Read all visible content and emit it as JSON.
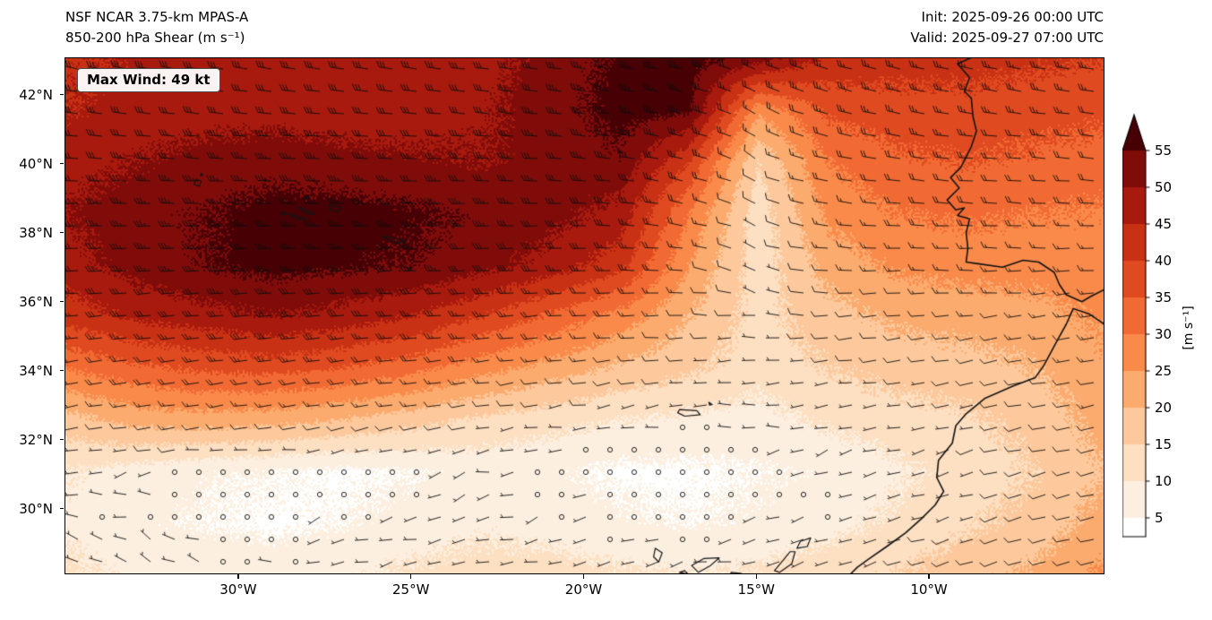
{
  "chart_data": {
    "type": "heatmap",
    "title": "NSF NCAR 3.75-km MPAS-A",
    "subtitle": "850-200 hPa Shear (m s⁻¹)",
    "init_label": "Init: 2025-09-26 00:00 UTC",
    "valid_label": "Valid: 2025-09-27 07:00 UTC",
    "max_wind_label": "Max Wind: 49 kt",
    "axes": {
      "lon_min": -35.03,
      "lon_max": -4.97,
      "lat_min": 28.12,
      "lat_max": 43.06,
      "xticks": [
        {
          "lon": -30,
          "label": "30°W"
        },
        {
          "lon": -25,
          "label": "25°W"
        },
        {
          "lon": -20,
          "label": "20°W"
        },
        {
          "lon": -15,
          "label": "15°W"
        },
        {
          "lon": -10,
          "label": "10°W"
        }
      ],
      "yticks": [
        {
          "lat": 42,
          "label": "42°N"
        },
        {
          "lat": 40,
          "label": "40°N"
        },
        {
          "lat": 38,
          "label": "38°N"
        },
        {
          "lat": 36,
          "label": "36°N"
        },
        {
          "lat": 34,
          "label": "34°N"
        },
        {
          "lat": 32,
          "label": "32°N"
        },
        {
          "lat": 30,
          "label": "30°N"
        }
      ]
    },
    "colorbar": {
      "label": "[m s⁻¹]",
      "ticks": [
        5,
        10,
        15,
        20,
        25,
        30,
        35,
        40,
        45,
        50,
        55
      ],
      "level_step": 5,
      "extend": "max",
      "colors": [
        "#ffffff",
        "#fcefe0",
        "#fddfc2",
        "#fdc99c",
        "#fcab6e",
        "#fa8a4a",
        "#f16a33",
        "#e04a20",
        "#c93114",
        "#a81a0e",
        "#800c0a",
        "#470105"
      ]
    },
    "shear_grid": {
      "units": "m s-1",
      "nx": 16,
      "ny": 11,
      "lons": [
        -35,
        -33,
        -31,
        -29,
        -27,
        -25,
        -23,
        -21,
        -19,
        -17,
        -15,
        -13,
        -11,
        -9,
        -7,
        -5
      ],
      "lats": [
        43.1,
        41.6,
        40.1,
        38.6,
        37.1,
        35.6,
        34.1,
        32.6,
        31.1,
        29.6,
        28.1
      ],
      "values": [
        [
          44,
          46,
          47,
          47,
          46,
          46,
          48,
          52,
          56,
          57,
          52,
          44,
          42,
          42,
          41,
          40
        ],
        [
          45,
          47,
          48,
          48,
          47,
          47,
          49,
          53,
          57,
          56,
          26,
          36,
          38,
          38,
          37,
          36
        ],
        [
          48,
          50,
          52,
          53,
          52,
          51,
          50,
          52,
          54,
          40,
          15,
          30,
          34,
          35,
          34,
          33
        ],
        [
          50,
          53,
          55,
          57,
          57,
          56,
          54,
          52,
          48,
          30,
          12,
          26,
          30,
          31,
          30,
          29
        ],
        [
          48,
          52,
          55,
          57,
          56,
          55,
          52,
          48,
          42,
          25,
          12,
          22,
          26,
          27,
          27,
          29
        ],
        [
          42,
          46,
          48,
          50,
          48,
          45,
          40,
          34,
          28,
          20,
          13,
          18,
          21,
          22,
          23,
          26
        ],
        [
          30,
          34,
          36,
          37,
          35,
          32,
          27,
          23,
          19,
          16,
          12,
          15,
          17,
          18,
          20,
          24
        ],
        [
          18,
          22,
          23,
          22,
          20,
          17,
          14,
          12,
          10,
          9,
          8,
          11,
          13,
          14,
          17,
          22
        ],
        [
          10,
          8,
          6,
          5,
          4,
          5,
          7,
          6,
          4,
          4,
          5,
          6,
          9,
          12,
          15,
          20
        ],
        [
          9,
          6,
          5,
          4,
          5,
          7,
          9,
          8,
          6,
          5,
          6,
          8,
          11,
          14,
          17,
          22
        ],
        [
          11,
          9,
          8,
          8,
          9,
          11,
          12,
          12,
          11,
          10,
          11,
          13,
          15,
          18,
          21,
          26
        ]
      ]
    },
    "wind_grid": {
      "units": "kt",
      "nx": 16,
      "ny": 11,
      "u": [
        [
          28,
          29,
          30,
          30,
          29,
          29,
          30,
          32,
          35,
          35,
          30,
          26,
          25,
          25,
          24,
          24
        ],
        [
          29,
          30,
          31,
          31,
          30,
          30,
          31,
          33,
          35,
          34,
          15,
          22,
          24,
          24,
          23,
          22
        ],
        [
          30,
          32,
          33,
          34,
          33,
          32,
          31,
          32,
          34,
          25,
          8,
          18,
          21,
          22,
          21,
          20
        ],
        [
          32,
          34,
          35,
          36,
          36,
          35,
          34,
          32,
          30,
          18,
          6,
          15,
          18,
          19,
          18,
          17
        ],
        [
          30,
          33,
          35,
          36,
          35,
          34,
          32,
          30,
          26,
          14,
          5,
          12,
          15,
          16,
          16,
          16
        ],
        [
          26,
          29,
          30,
          31,
          30,
          28,
          25,
          21,
          17,
          11,
          6,
          9,
          11,
          12,
          13,
          14
        ],
        [
          18,
          21,
          22,
          23,
          22,
          20,
          16,
          13,
          10,
          8,
          5,
          7,
          8,
          9,
          11,
          13
        ],
        [
          10,
          13,
          14,
          13,
          12,
          10,
          8,
          6,
          4,
          3,
          3,
          5,
          6,
          7,
          9,
          12
        ],
        [
          5,
          3,
          2,
          1,
          1,
          2,
          3,
          2,
          1,
          1,
          2,
          2,
          4,
          6,
          8,
          10
        ],
        [
          4,
          2,
          1,
          1,
          2,
          3,
          4,
          3,
          2,
          1,
          2,
          3,
          5,
          7,
          8,
          10
        ],
        [
          5,
          3,
          3,
          3,
          4,
          5,
          5,
          5,
          4,
          4,
          5,
          6,
          7,
          9,
          10,
          12
        ]
      ],
      "v": [
        [
          -6,
          -6,
          -5,
          -5,
          -4,
          -4,
          -4,
          -5,
          -6,
          -8,
          -10,
          -8,
          -6,
          -5,
          -4,
          -4
        ],
        [
          -4,
          -4,
          -4,
          -3,
          -3,
          -3,
          -3,
          -4,
          -6,
          -8,
          -8,
          -6,
          -5,
          -4,
          -3,
          -3
        ],
        [
          -2,
          -2,
          -2,
          -1,
          -1,
          -1,
          -1,
          -2,
          -4,
          -6,
          -5,
          -4,
          -3,
          -2,
          -2,
          -2
        ],
        [
          0,
          0,
          0,
          1,
          1,
          1,
          0,
          0,
          -2,
          -4,
          -3,
          -2,
          -1,
          -1,
          -1,
          0
        ],
        [
          2,
          2,
          2,
          2,
          2,
          2,
          1,
          1,
          0,
          -2,
          -2,
          -1,
          0,
          0,
          0,
          1
        ],
        [
          3,
          3,
          3,
          3,
          3,
          2,
          2,
          2,
          1,
          0,
          -1,
          0,
          1,
          1,
          2,
          2
        ],
        [
          3,
          3,
          3,
          3,
          3,
          2,
          2,
          2,
          1,
          1,
          0,
          1,
          1,
          2,
          2,
          3
        ],
        [
          2,
          2,
          2,
          2,
          2,
          2,
          1,
          1,
          1,
          0,
          0,
          1,
          1,
          2,
          2,
          3
        ],
        [
          1,
          1,
          0,
          0,
          0,
          1,
          1,
          0,
          0,
          0,
          0,
          1,
          1,
          2,
          2,
          2
        ],
        [
          -1,
          -1,
          0,
          0,
          1,
          1,
          1,
          1,
          0,
          0,
          1,
          1,
          2,
          2,
          2,
          2
        ],
        [
          -2,
          -1,
          -1,
          0,
          1,
          1,
          1,
          1,
          1,
          1,
          1,
          2,
          2,
          3,
          3,
          3
        ]
      ]
    },
    "coastlines": [
      [
        [
          -8.75,
          43.1
        ],
        [
          -9.2,
          42.9
        ],
        [
          -8.85,
          42.5
        ],
        [
          -9.0,
          42.1
        ],
        [
          -8.8,
          41.9
        ],
        [
          -8.75,
          41.35
        ],
        [
          -8.65,
          40.95
        ],
        [
          -8.8,
          40.5
        ],
        [
          -9.1,
          39.9
        ],
        [
          -9.4,
          39.6
        ],
        [
          -9.15,
          39.3
        ],
        [
          -9.5,
          38.95
        ],
        [
          -9.25,
          38.66
        ],
        [
          -9.0,
          38.72
        ],
        [
          -9.2,
          38.5
        ],
        [
          -8.85,
          38.4
        ],
        [
          -8.95,
          38.0
        ],
        [
          -8.9,
          37.55
        ],
        [
          -8.95,
          37.15
        ],
        [
          -8.6,
          37.1
        ],
        [
          -7.9,
          37.0
        ],
        [
          -7.3,
          37.2
        ],
        [
          -6.85,
          37.15
        ],
        [
          -6.4,
          36.85
        ],
        [
          -6.25,
          36.5
        ],
        [
          -6.05,
          36.2
        ],
        [
          -5.6,
          36.0
        ],
        [
          -5.35,
          36.15
        ],
        [
          -4.95,
          36.35
        ]
      ],
      [
        [
          -4.95,
          35.35
        ],
        [
          -5.4,
          35.65
        ],
        [
          -5.85,
          35.8
        ],
        [
          -6.05,
          35.35
        ],
        [
          -6.3,
          34.9
        ],
        [
          -6.7,
          34.15
        ],
        [
          -6.95,
          33.8
        ],
        [
          -7.6,
          33.55
        ],
        [
          -8.4,
          33.2
        ],
        [
          -8.95,
          32.75
        ],
        [
          -9.25,
          32.4
        ],
        [
          -9.35,
          31.9
        ],
        [
          -9.75,
          31.4
        ],
        [
          -9.8,
          30.9
        ],
        [
          -9.6,
          30.5
        ],
        [
          -9.85,
          30.1
        ],
        [
          -10.25,
          29.7
        ],
        [
          -10.7,
          29.3
        ],
        [
          -11.25,
          28.9
        ],
        [
          -11.75,
          28.55
        ],
        [
          -12.1,
          28.3
        ],
        [
          -12.35,
          28.05
        ]
      ]
    ],
    "islands": [
      [
        [
          -31.25,
          39.55
        ],
        [
          -31.1,
          39.5
        ],
        [
          -31.15,
          39.35
        ],
        [
          -31.3,
          39.4
        ]
      ],
      [
        [
          -31.1,
          39.72
        ],
        [
          -31.05,
          39.67
        ],
        [
          -31.12,
          39.65
        ]
      ],
      [
        [
          -28.8,
          38.6
        ],
        [
          -28.6,
          38.55
        ],
        [
          -28.7,
          38.5
        ]
      ],
      [
        [
          -28.55,
          38.55
        ],
        [
          -28.05,
          38.4
        ],
        [
          -28.3,
          38.38
        ]
      ],
      [
        [
          -28.3,
          38.75
        ],
        [
          -27.8,
          38.55
        ],
        [
          -28.0,
          38.53
        ]
      ],
      [
        [
          -28.05,
          39.1
        ],
        [
          -27.95,
          39.0
        ],
        [
          -28.1,
          39.0
        ]
      ],
      [
        [
          -27.4,
          38.8
        ],
        [
          -27.05,
          38.73
        ],
        [
          -27.15,
          38.6
        ],
        [
          -27.35,
          38.65
        ]
      ],
      [
        [
          -25.85,
          37.9
        ],
        [
          -25.5,
          37.85
        ],
        [
          -25.15,
          37.75
        ],
        [
          -25.45,
          37.7
        ],
        [
          -25.75,
          37.82
        ]
      ],
      [
        [
          -25.15,
          37.0
        ],
        [
          -25.0,
          36.95
        ],
        [
          -25.1,
          36.92
        ]
      ],
      [
        [
          -17.25,
          32.87
        ],
        [
          -16.75,
          32.84
        ],
        [
          -16.65,
          32.72
        ],
        [
          -17.1,
          32.68
        ],
        [
          -17.3,
          32.78
        ]
      ],
      [
        [
          -16.4,
          33.08
        ],
        [
          -16.3,
          33.02
        ],
        [
          -16.38,
          33.0
        ]
      ],
      [
        [
          -17.95,
          28.85
        ],
        [
          -17.75,
          28.72
        ],
        [
          -17.85,
          28.45
        ],
        [
          -18.0,
          28.6
        ]
      ],
      [
        [
          -16.9,
          28.35
        ],
        [
          -16.55,
          28.55
        ],
        [
          -16.1,
          28.57
        ],
        [
          -16.35,
          28.35
        ],
        [
          -16.7,
          28.15
        ]
      ],
      [
        [
          -17.25,
          28.15
        ],
        [
          -17.1,
          28.2
        ],
        [
          -17.0,
          28.1
        ]
      ],
      [
        [
          -15.75,
          28.15
        ],
        [
          -15.45,
          28.12
        ],
        [
          -15.55,
          28.0
        ],
        [
          -15.8,
          28.05
        ]
      ],
      [
        [
          -13.75,
          29.05
        ],
        [
          -13.45,
          29.15
        ],
        [
          -13.55,
          28.9
        ],
        [
          -13.85,
          28.85
        ]
      ],
      [
        [
          -13.9,
          28.75
        ],
        [
          -14.0,
          28.4
        ],
        [
          -14.35,
          28.15
        ],
        [
          -14.5,
          28.2
        ],
        [
          -14.25,
          28.5
        ],
        [
          -14.05,
          28.75
        ]
      ]
    ],
    "barbs": {
      "spacing_x": 27,
      "spacing_y": 25,
      "length": 15,
      "calm_threshold_kt": 2.5
    }
  }
}
